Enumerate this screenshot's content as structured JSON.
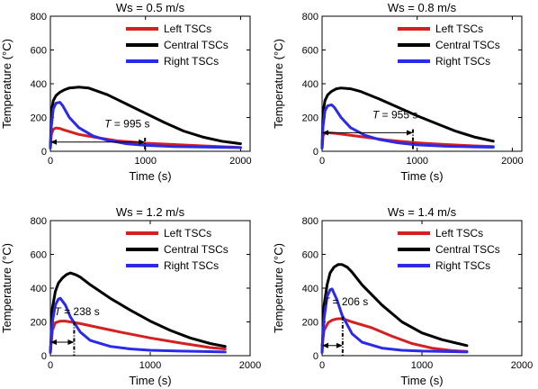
{
  "colors": {
    "left": "#d42020",
    "central": "#000000",
    "right": "#2a2ae8",
    "axis": "#000000",
    "annotation": "#000000"
  },
  "chart_data": [
    {
      "type": "line",
      "title": "Ws = 0.5 m/s",
      "xlabel": "Time (s)",
      "ylabel": "Temperature (°C)",
      "xlim": [
        0,
        2100
      ],
      "ylim": [
        0,
        800
      ],
      "xticks": [
        0,
        1000,
        2000
      ],
      "yticks": [
        0,
        200,
        400,
        600,
        800
      ],
      "xtick_labels": [
        "0",
        "1000",
        "2000"
      ],
      "ytick_labels": [
        "0",
        "200",
        "400",
        "600",
        "800"
      ],
      "legend": [
        "Left TSCs",
        "Central TSCs",
        "Right TSCs"
      ],
      "legend_position": "top-right",
      "annotation": {
        "T_value": "= 995 s",
        "arrow_y": 55,
        "x_start": 0,
        "x_end": 995,
        "dash_y_top": 80
      },
      "series": [
        {
          "name": "Left TSCs",
          "x": [
            0,
            10,
            30,
            60,
            100,
            150,
            300,
            500,
            700,
            1000,
            1300,
            1600,
            1900,
            2000
          ],
          "y": [
            20,
            100,
            130,
            138,
            135,
            125,
            100,
            80,
            62,
            48,
            40,
            32,
            25,
            22
          ]
        },
        {
          "name": "Central TSCs",
          "x": [
            0,
            10,
            30,
            60,
            100,
            150,
            200,
            300,
            400,
            600,
            800,
            1000,
            1200,
            1400,
            1600,
            1800,
            2000
          ],
          "y": [
            20,
            230,
            300,
            330,
            350,
            365,
            375,
            380,
            375,
            335,
            280,
            225,
            170,
            120,
            85,
            60,
            45
          ]
        },
        {
          "name": "Right TSCs",
          "x": [
            0,
            10,
            30,
            60,
            100,
            130,
            200,
            300,
            450,
            600,
            800,
            1000,
            1300,
            1600,
            2000
          ],
          "y": [
            20,
            150,
            250,
            285,
            290,
            270,
            200,
            140,
            90,
            65,
            45,
            35,
            28,
            25,
            22
          ]
        }
      ]
    },
    {
      "type": "line",
      "title": "Ws = 0.8 m/s",
      "xlabel": "Time (s)",
      "ylabel": "Temperature (°C)",
      "xlim": [
        0,
        2100
      ],
      "ylim": [
        0,
        800
      ],
      "xticks": [
        0,
        1000,
        2000
      ],
      "yticks": [
        0,
        200,
        400,
        600,
        800
      ],
      "xtick_labels": [
        "0",
        "1000",
        "2000"
      ],
      "ytick_labels": [
        "0",
        "200",
        "400",
        "600",
        "800"
      ],
      "legend": [
        "Left TSCs",
        "Central TSCs",
        "Right TSCs"
      ],
      "legend_position": "top-right",
      "annotation": {
        "T_value": "= 955 s",
        "arrow_y": 110,
        "x_start": 0,
        "x_end": 955,
        "dash_y_top": 130
      },
      "series": [
        {
          "name": "Left TSCs",
          "x": [
            0,
            10,
            30,
            60,
            100,
            150,
            300,
            500,
            700,
            1000,
            1300,
            1600,
            1800
          ],
          "y": [
            20,
            95,
            108,
            110,
            108,
            105,
            95,
            80,
            65,
            50,
            40,
            32,
            28
          ]
        },
        {
          "name": "Central TSCs",
          "x": [
            0,
            10,
            30,
            60,
            100,
            150,
            200,
            300,
            400,
            600,
            800,
            1000,
            1200,
            1400,
            1600,
            1800
          ],
          "y": [
            20,
            230,
            300,
            335,
            355,
            370,
            375,
            370,
            355,
            310,
            260,
            210,
            165,
            120,
            85,
            60
          ]
        },
        {
          "name": "Right TSCs",
          "x": [
            0,
            10,
            30,
            60,
            100,
            130,
            200,
            300,
            450,
            600,
            800,
            1000,
            1300,
            1600,
            1800
          ],
          "y": [
            20,
            150,
            240,
            270,
            275,
            260,
            200,
            140,
            95,
            70,
            50,
            38,
            30,
            26,
            24
          ]
        }
      ]
    },
    {
      "type": "line",
      "title": "Ws = 1.2 m/s",
      "xlabel": "Time (s)",
      "ylabel": "Temperature (°C)",
      "xlim": [
        0,
        2000
      ],
      "ylim": [
        0,
        800
      ],
      "xticks": [
        0,
        1000,
        2000
      ],
      "yticks": [
        0,
        200,
        400,
        600,
        800
      ],
      "xtick_labels": [
        "0",
        "1000",
        "2000"
      ],
      "ytick_labels": [
        "0",
        "200",
        "400",
        "600",
        "800"
      ],
      "legend": [
        "Left TSCs",
        "Central TSCs",
        "Right TSCs"
      ],
      "legend_position": "top-right",
      "annotation": {
        "T_value": "= 238 s",
        "arrow_y": 80,
        "x_start": 0,
        "x_end": 238,
        "dash_y_top": 200
      },
      "series": [
        {
          "name": "Left TSCs",
          "x": [
            0,
            20,
            50,
            100,
            150,
            200,
            300,
            500,
            700,
            1000,
            1300,
            1600,
            1750
          ],
          "y": [
            20,
            150,
            195,
            205,
            205,
            200,
            190,
            165,
            140,
            105,
            75,
            48,
            40
          ]
        },
        {
          "name": "Central TSCs",
          "x": [
            0,
            20,
            50,
            80,
            120,
            160,
            200,
            260,
            300,
            400,
            600,
            800,
            1000,
            1200,
            1400,
            1600,
            1750
          ],
          "y": [
            20,
            280,
            380,
            430,
            460,
            480,
            490,
            478,
            465,
            420,
            340,
            270,
            205,
            150,
            105,
            72,
            55
          ]
        },
        {
          "name": "Right TSCs",
          "x": [
            0,
            20,
            50,
            80,
            100,
            150,
            200,
            300,
            400,
            600,
            800,
            1000,
            1300,
            1600,
            1750
          ],
          "y": [
            20,
            200,
            300,
            335,
            340,
            300,
            230,
            140,
            90,
            55,
            40,
            32,
            27,
            24,
            22
          ]
        }
      ]
    },
    {
      "type": "line",
      "title": "Ws = 1.4 m/s",
      "xlabel": "Time (s)",
      "ylabel": "Temperature (°C)",
      "xlim": [
        0,
        2000
      ],
      "ylim": [
        0,
        800
      ],
      "xticks": [
        0,
        1000,
        2000
      ],
      "yticks": [
        0,
        200,
        400,
        600,
        800
      ],
      "xtick_labels": [
        "0",
        "1000",
        "2000"
      ],
      "ytick_labels": [
        "0",
        "200",
        "400",
        "600",
        "800"
      ],
      "legend": [
        "Left TSCs",
        "Central TSCs",
        "Right TSCs"
      ],
      "legend_position": "top-right",
      "annotation": {
        "T_value": "= 206 s",
        "arrow_y": 60,
        "x_start": 0,
        "x_end": 206,
        "dash_y_top": 230
      },
      "series": [
        {
          "name": "Left TSCs",
          "x": [
            0,
            20,
            60,
            100,
            150,
            200,
            250,
            300,
            500,
            700,
            900,
            1100,
            1300,
            1450
          ],
          "y": [
            60,
            150,
            195,
            210,
            218,
            220,
            210,
            200,
            165,
            115,
            72,
            45,
            30,
            25
          ]
        },
        {
          "name": "Central TSCs",
          "x": [
            0,
            20,
            50,
            80,
            120,
            160,
            200,
            250,
            300,
            400,
            600,
            800,
            1000,
            1200,
            1450
          ],
          "y": [
            20,
            300,
            420,
            490,
            525,
            540,
            540,
            525,
            495,
            420,
            300,
            200,
            135,
            95,
            60
          ]
        },
        {
          "name": "Right TSCs",
          "x": [
            0,
            20,
            50,
            80,
            100,
            150,
            200,
            300,
            400,
            600,
            800,
            1000,
            1300,
            1450
          ],
          "y": [
            20,
            220,
            350,
            390,
            395,
            330,
            240,
            130,
            80,
            45,
            32,
            27,
            24,
            22
          ]
        }
      ]
    }
  ]
}
